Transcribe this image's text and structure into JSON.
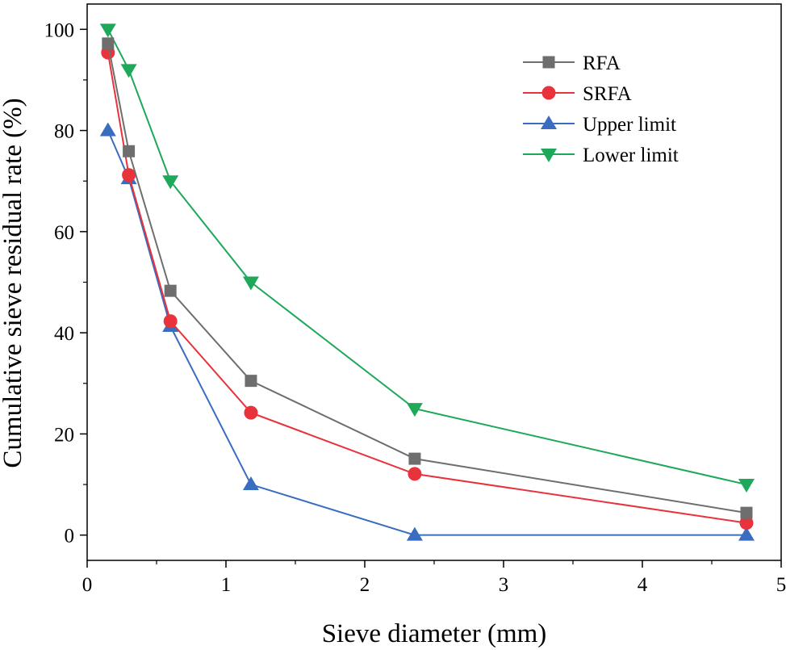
{
  "chart_data": {
    "type": "line",
    "xlabel": "Sieve diameter (mm)",
    "ylabel": "Cumulative sieve residual rate (%)",
    "xlim": [
      0,
      5
    ],
    "ylim": [
      -5,
      105
    ],
    "xticks": [
      0,
      1,
      2,
      3,
      4,
      5
    ],
    "yticks": [
      0,
      20,
      40,
      60,
      80,
      100
    ],
    "x": [
      0.15,
      0.3,
      0.6,
      1.18,
      2.36,
      4.75
    ],
    "series": [
      {
        "name": "RFA",
        "marker": "square",
        "color": "#6e6e6e",
        "values": [
          97.2,
          75.9,
          48.3,
          30.5,
          15.1,
          4.4
        ]
      },
      {
        "name": "SRFA",
        "marker": "circle",
        "color": "#e8323c",
        "values": [
          95.4,
          71.2,
          42.3,
          24.2,
          12.1,
          2.4
        ]
      },
      {
        "name": "Upper limit",
        "marker": "triangle-up",
        "color": "#3a6cc0",
        "values": [
          80,
          70.5,
          41.3,
          10,
          0,
          0
        ]
      },
      {
        "name": "Lower limit",
        "marker": "triangle-down",
        "color": "#1ea85a",
        "values": [
          100,
          92,
          70,
          50,
          25,
          10
        ]
      }
    ],
    "legend_position": "top-right",
    "grid": false
  }
}
